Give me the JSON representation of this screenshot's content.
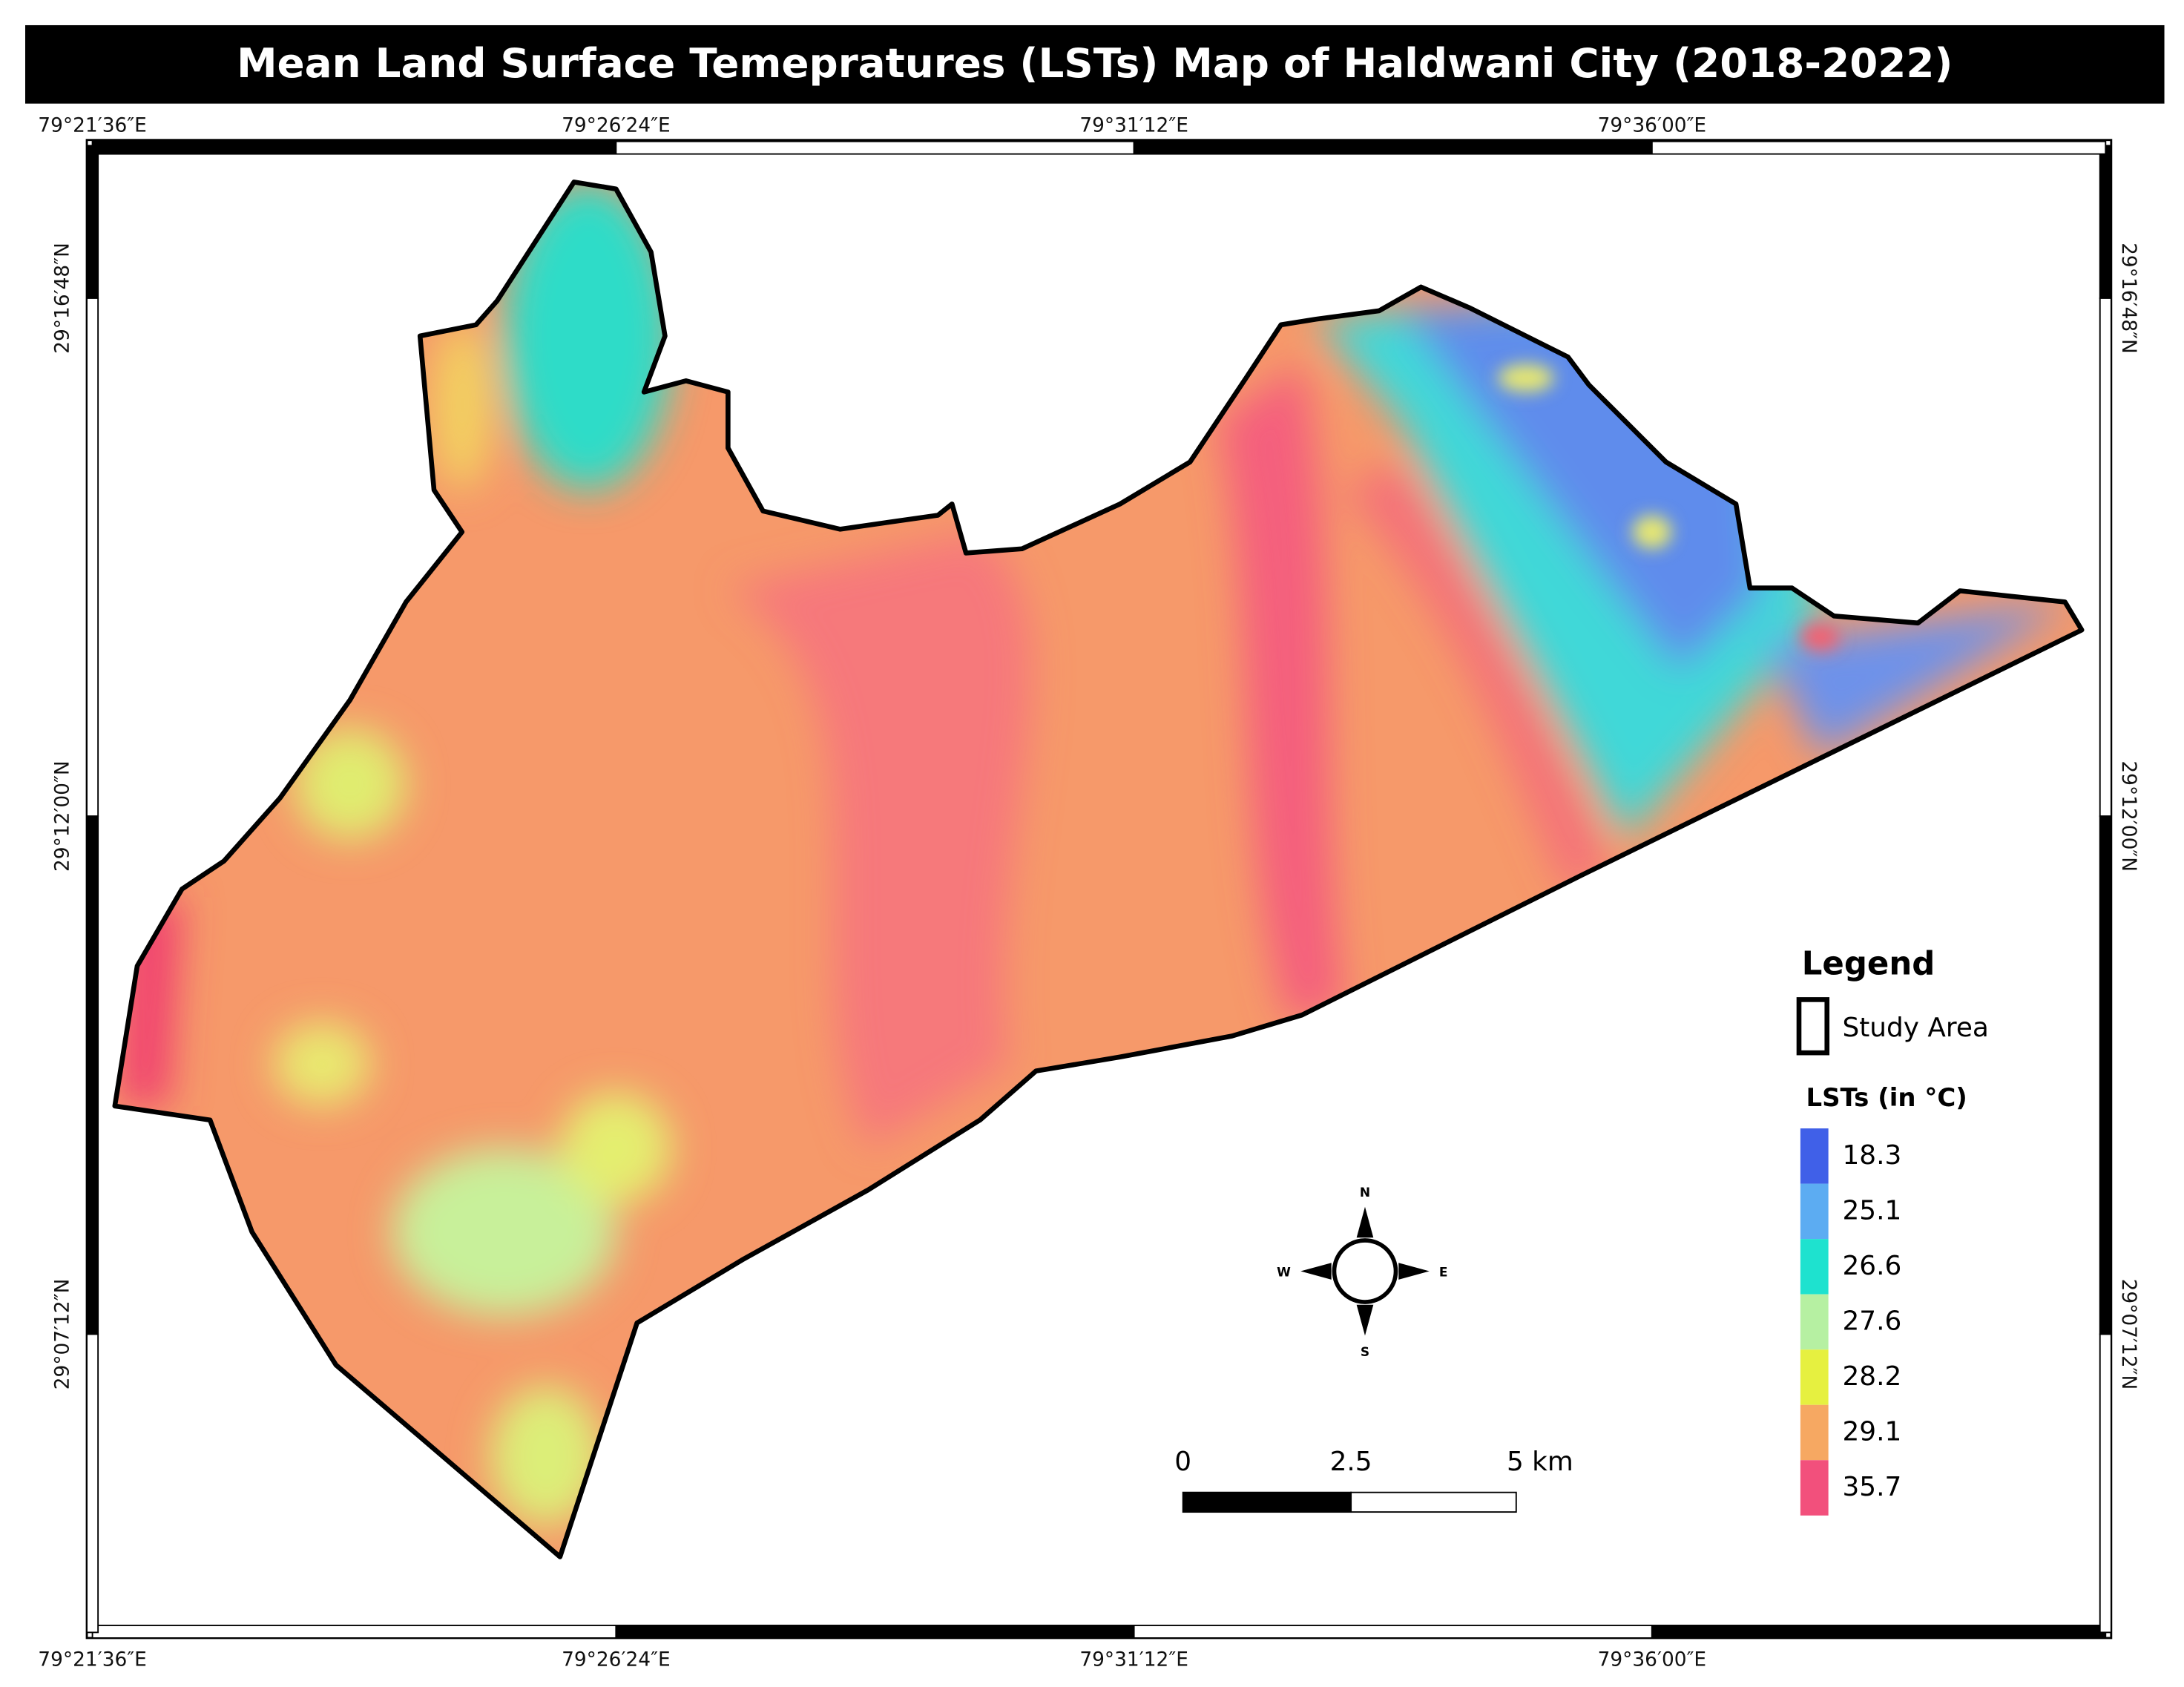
{
  "title": "Mean Land Surface Temepratures (LSTs) Map of Haldwani City (2018-2022)",
  "graticule": {
    "top": [
      "79°21′36″E",
      "79°26′24″E",
      "79°31′12″E",
      "79°36′00″E"
    ],
    "bottom": [
      "79°21′36″E",
      "79°26′24″E",
      "79°31′12″E",
      "79°36′00″E"
    ],
    "left": [
      "29°16′48″N",
      "29°12′00″N",
      "29°07′12″N"
    ],
    "right": [
      "29°16′48″N",
      "29°12′00″N",
      "29°07′12″N"
    ]
  },
  "legend": {
    "title": "Legend",
    "study_area": "Study Area",
    "lst_title": "LSTs (in °C)",
    "classes": [
      {
        "color": "#4060e8",
        "value": 18.3
      },
      {
        "color": "#5cacf2",
        "value": 25.1
      },
      {
        "color": "#1ee2cf",
        "value": 26.6
      },
      {
        "color": "#b6f0a2",
        "value": 27.6
      },
      {
        "color": "#e6f040",
        "value": 28.2
      },
      {
        "color": "#f6a862",
        "value": 29.1
      },
      {
        "color": "#f2507c",
        "value": 35.7
      }
    ]
  },
  "compass": {
    "north": "N",
    "south": "S",
    "east": "E",
    "west": "W"
  },
  "scale_bar": {
    "labels": [
      "0",
      "2.5",
      "5 km"
    ]
  }
}
